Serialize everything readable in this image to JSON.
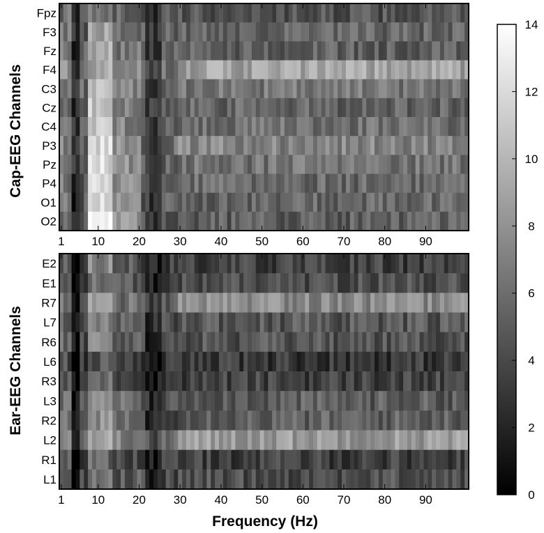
{
  "chart_data": [
    {
      "type": "heatmap",
      "ylabel": "Cap-EEG Channels",
      "rows": [
        "Fpz",
        "F3",
        "Fz",
        "F4",
        "C3",
        "Cz",
        "C4",
        "P3",
        "Pz",
        "P4",
        "O1",
        "O2"
      ],
      "x_ticks": [
        1,
        10,
        20,
        30,
        40,
        50,
        60,
        70,
        80,
        90
      ],
      "x_range": [
        1,
        100
      ],
      "profiles": {
        "Fpz": {
          "base": 4.5,
          "alpha": 2.5,
          "late": 0.0
        },
        "F3": {
          "base": 5.2,
          "alpha": 3.5,
          "late": 0.3
        },
        "Fz": {
          "base": 5.0,
          "alpha": 4.5,
          "late": 0.2
        },
        "F4": {
          "base": 6.0,
          "alpha": 3.0,
          "late": 3.0
        },
        "C3": {
          "base": 5.5,
          "alpha": 5.5,
          "late": 1.0
        },
        "Cz": {
          "base": 5.0,
          "alpha": 6.0,
          "late": 0.5
        },
        "C4": {
          "base": 5.3,
          "alpha": 5.5,
          "late": 0.8
        },
        "P3": {
          "base": 5.8,
          "alpha": 6.0,
          "late": 1.5
        },
        "Pz": {
          "base": 5.5,
          "alpha": 6.5,
          "late": 0.8
        },
        "P4": {
          "base": 5.3,
          "alpha": 7.0,
          "late": 0.5
        },
        "O1": {
          "base": 5.0,
          "alpha": 7.5,
          "late": 0.5
        },
        "O2": {
          "base": 5.0,
          "alpha": 8.5,
          "late": 0.2
        }
      }
    },
    {
      "type": "heatmap",
      "ylabel": "Ear-EEG Channels",
      "xlabel": "Frequency (Hz)",
      "rows": [
        "E2",
        "E1",
        "R7",
        "L7",
        "R6",
        "L6",
        "R3",
        "L3",
        "R2",
        "L2",
        "R1",
        "L1"
      ],
      "x_ticks": [
        1,
        10,
        20,
        30,
        40,
        50,
        60,
        70,
        80,
        90
      ],
      "x_range": [
        1,
        100
      ],
      "profiles": {
        "E2": {
          "base": 3.5,
          "alpha": 4.0,
          "late": 0.0
        },
        "E1": {
          "base": 3.8,
          "alpha": 2.0,
          "late": 0.5
        },
        "R7": {
          "base": 5.0,
          "alpha": 3.0,
          "late": 2.5
        },
        "L7": {
          "base": 4.0,
          "alpha": 3.0,
          "late": 0.8
        },
        "R6": {
          "base": 4.0,
          "alpha": 3.5,
          "late": 0.5
        },
        "L6": {
          "base": 2.8,
          "alpha": 2.0,
          "late": 0.3
        },
        "R3": {
          "base": 3.3,
          "alpha": 2.5,
          "late": 0.3
        },
        "L3": {
          "base": 4.3,
          "alpha": 4.0,
          "late": 0.8
        },
        "R2": {
          "base": 4.3,
          "alpha": 3.5,
          "late": 1.0
        },
        "L2": {
          "base": 6.0,
          "alpha": 3.0,
          "late": 2.5
        },
        "R1": {
          "base": 3.3,
          "alpha": 2.5,
          "late": 0.2
        },
        "L1": {
          "base": 3.8,
          "alpha": 3.0,
          "late": 0.5
        }
      }
    }
  ],
  "colorbar": {
    "range": [
      0,
      14
    ],
    "ticks": [
      0,
      2,
      4,
      6,
      8,
      10,
      12,
      14
    ],
    "colormap": "gray",
    "low_color": "#000000",
    "high_color": "#ffffff"
  }
}
